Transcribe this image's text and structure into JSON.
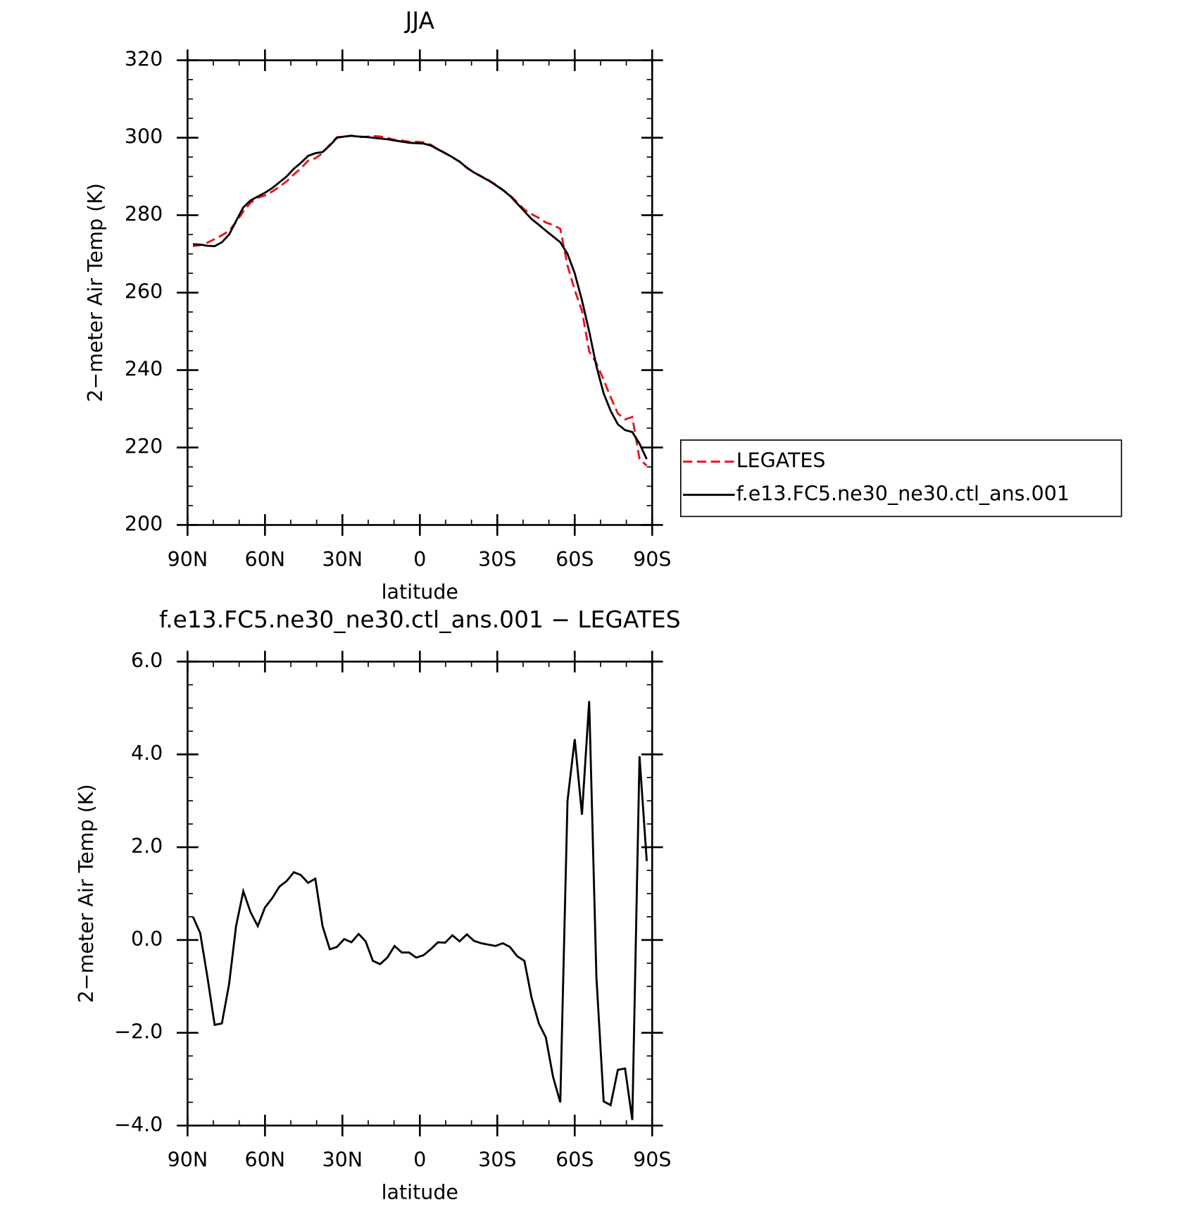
{
  "chart_data": [
    {
      "type": "line",
      "title": "JJA",
      "xlabel": "latitude",
      "ylabel": "2−meter Air Temp (K)",
      "x": [
        87.9,
        85.1,
        82.3,
        79.5,
        76.7,
        73.9,
        71.2,
        68.4,
        65.6,
        62.8,
        60.0,
        57.2,
        54.4,
        51.6,
        48.8,
        46.1,
        43.3,
        40.5,
        37.7,
        34.9,
        32.1,
        29.3,
        26.5,
        23.7,
        21.0,
        18.2,
        15.4,
        12.6,
        9.8,
        7.0,
        4.2,
        1.4,
        -1.4,
        -4.2,
        -7.0,
        -9.8,
        -12.6,
        -15.4,
        -18.2,
        -21.0,
        -23.7,
        -26.5,
        -29.3,
        -32.1,
        -34.9,
        -37.7,
        -40.5,
        -43.3,
        -46.1,
        -48.8,
        -51.6,
        -54.4,
        -57.2,
        -60.0,
        -62.8,
        -65.6,
        -68.4,
        -71.2,
        -73.9,
        -76.7,
        -79.5,
        -82.3,
        -85.1,
        -87.9
      ],
      "series": [
        {
          "name": "LEGATES",
          "color": "#e8141a",
          "dash": true,
          "values": [
            272.0,
            272.25,
            272.9,
            273.83,
            274.8,
            275.95,
            278.2,
            280.95,
            283.2,
            284.5,
            285.1,
            286.1,
            287.35,
            288.73,
            290.54,
            292.1,
            294.07,
            294.68,
            296.0,
            298.2,
            300.15,
            300.28,
            300.55,
            300.17,
            300.23,
            300.45,
            300.32,
            299.98,
            299.43,
            299.27,
            298.97,
            298.98,
            298.83,
            298.2,
            297.05,
            296.06,
            294.9,
            293.83,
            292.18,
            291.02,
            290.07,
            289.1,
            287.93,
            286.57,
            285.15,
            283.35,
            281.45,
            280.25,
            279.3,
            278.1,
            277.45,
            276.5,
            267.0,
            260.67,
            255.3,
            244.85,
            241.8,
            237.48,
            233.06,
            228.8,
            227.27,
            227.88,
            217.04,
            215.3
          ]
        },
        {
          "name": "f.e13.FC5.ne30_ne30.ctl_ans.001",
          "color": "#000000",
          "dash": false,
          "values": [
            272.5,
            272.4,
            272.1,
            272.0,
            273.0,
            275.0,
            278.5,
            282.0,
            283.8,
            284.8,
            285.8,
            287.0,
            288.5,
            290.0,
            292.0,
            293.5,
            295.3,
            296.0,
            296.3,
            298.0,
            300.0,
            300.3,
            300.5,
            300.3,
            300.2,
            300.0,
            299.8,
            299.6,
            299.3,
            299.0,
            298.7,
            298.6,
            298.5,
            298.0,
            297.0,
            296.0,
            295.0,
            293.8,
            292.3,
            291.0,
            290.0,
            289.0,
            287.8,
            286.5,
            285.0,
            283.0,
            281.0,
            279.0,
            277.5,
            276.0,
            274.5,
            273.0,
            270.0,
            265.0,
            258.0,
            250.0,
            241.0,
            234.0,
            229.5,
            226.0,
            224.5,
            224.0,
            221.0,
            217.0
          ]
        }
      ],
      "xlim": [
        90,
        -90
      ],
      "xticks": [
        {
          "value": 90,
          "label": "90N"
        },
        {
          "value": 60,
          "label": "60N"
        },
        {
          "value": 30,
          "label": "30N"
        },
        0,
        {
          "value": -30,
          "label": "30S"
        },
        {
          "value": -60,
          "label": "60S"
        },
        {
          "value": -90,
          "label": "90S"
        }
      ],
      "ylim": [
        200,
        320
      ],
      "yticks": [
        200,
        220,
        240,
        260,
        280,
        300,
        320
      ],
      "legend": "outside-right"
    },
    {
      "type": "line",
      "title": "f.e13.FC5.ne30_ne30.ctl_ans.001 − LEGATES",
      "xlabel": "latitude",
      "ylabel": "2−meter Air Temp (K)",
      "x": [
        87.9,
        85.1,
        82.3,
        79.5,
        76.7,
        73.9,
        71.2,
        68.4,
        65.6,
        62.8,
        60.0,
        57.2,
        54.4,
        51.6,
        48.8,
        46.1,
        43.3,
        40.5,
        37.7,
        34.9,
        32.1,
        29.3,
        26.5,
        23.7,
        21.0,
        18.2,
        15.4,
        12.6,
        9.8,
        7.0,
        4.2,
        1.4,
        -1.4,
        -4.2,
        -7.0,
        -9.8,
        -12.6,
        -15.4,
        -18.2,
        -21.0,
        -23.7,
        -26.5,
        -29.3,
        -32.1,
        -34.9,
        -37.7,
        -40.5,
        -43.3,
        -46.1,
        -48.8,
        -51.6,
        -54.4,
        -57.2,
        -60.0,
        -62.8,
        -65.6,
        -68.4,
        -71.2,
        -73.9,
        -76.7,
        -79.5,
        -82.3,
        -85.1,
        -87.9
      ],
      "series": [
        {
          "color": "#000000",
          "dash": false,
          "values": [
            0.5,
            0.15,
            -0.8,
            -1.83,
            -1.8,
            -0.95,
            0.3,
            1.05,
            0.6,
            0.3,
            0.7,
            0.9,
            1.15,
            1.27,
            1.46,
            1.4,
            1.23,
            1.32,
            0.3,
            -0.2,
            -0.15,
            0.02,
            -0.05,
            0.13,
            -0.03,
            -0.45,
            -0.52,
            -0.38,
            -0.13,
            -0.27,
            -0.27,
            -0.38,
            -0.33,
            -0.2,
            -0.05,
            -0.06,
            0.1,
            -0.03,
            0.12,
            -0.02,
            -0.07,
            -0.1,
            -0.13,
            -0.07,
            -0.15,
            -0.35,
            -0.45,
            -1.25,
            -1.8,
            -2.1,
            -2.95,
            -3.5,
            3.0,
            4.33,
            2.7,
            5.15,
            -0.8,
            -3.48,
            -3.56,
            -2.8,
            -2.77,
            -3.88,
            3.96,
            1.7
          ]
        }
      ],
      "xlim": [
        90,
        -90
      ],
      "xticks": [
        {
          "value": 90,
          "label": "90N"
        },
        {
          "value": 60,
          "label": "60N"
        },
        {
          "value": 30,
          "label": "30N"
        },
        0,
        {
          "value": -30,
          "label": "30S"
        },
        {
          "value": -60,
          "label": "60S"
        },
        {
          "value": -90,
          "label": "90S"
        }
      ],
      "ylim": [
        -4,
        6
      ],
      "yticks": [
        {
          "value": -4,
          "label": "−4.0"
        },
        {
          "value": -2,
          "label": "−2.0"
        },
        {
          "value": 0,
          "label": "0.0"
        },
        {
          "value": 2,
          "label": "2.0"
        },
        {
          "value": 4,
          "label": "4.0"
        },
        {
          "value": 6,
          "label": "6.0"
        }
      ]
    }
  ]
}
